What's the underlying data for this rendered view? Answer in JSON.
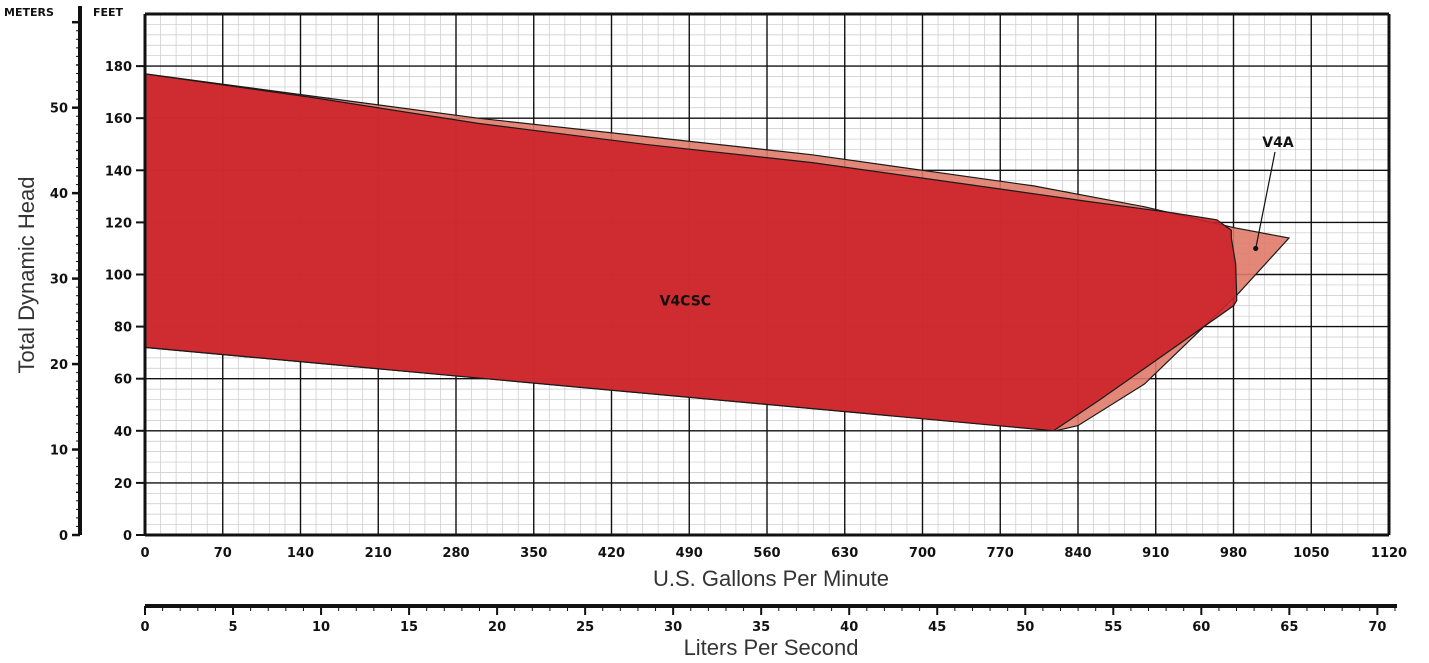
{
  "chart_data": {
    "type": "area",
    "units_header": {
      "meters": "METERS",
      "feet": "FEET"
    },
    "xlabel": "U.S. Gallons Per Minute",
    "ylabel": "Total Dynamic Head",
    "secondary_xlabel": "Liters Per Second",
    "xlim": [
      0,
      1120
    ],
    "ylim_feet": [
      0,
      200
    ],
    "x_ticks": [
      "0",
      "70",
      "140",
      "210",
      "280",
      "350",
      "420",
      "490",
      "560",
      "630",
      "700",
      "770",
      "840",
      "910",
      "980",
      "1050",
      "1120"
    ],
    "y_ticks_feet": [
      "0",
      "20",
      "40",
      "60",
      "80",
      "100",
      "120",
      "140",
      "160",
      "180"
    ],
    "y_ticks_meters": [
      "0",
      "10",
      "20",
      "30",
      "40",
      "50"
    ],
    "x2_ticks_lps": [
      "0",
      "5",
      "10",
      "15",
      "20",
      "25",
      "30",
      "35",
      "40",
      "45",
      "50",
      "55",
      "60",
      "65",
      "70"
    ],
    "grid": true,
    "series": [
      {
        "name": "V4A",
        "color": "#e07b6a",
        "points": [
          [
            0,
            177
          ],
          [
            300,
            160
          ],
          [
            600,
            146
          ],
          [
            800,
            134
          ],
          [
            900,
            126
          ],
          [
            980,
            118
          ],
          [
            1030,
            114
          ],
          [
            985,
            93
          ],
          [
            900,
            58
          ],
          [
            840,
            42
          ],
          [
            820,
            40
          ],
          [
            0,
            72
          ]
        ]
      },
      {
        "name": "V4CSC",
        "color": "#cc2229",
        "points": [
          [
            0,
            177
          ],
          [
            150,
            168
          ],
          [
            300,
            158
          ],
          [
            450,
            150
          ],
          [
            600,
            143
          ],
          [
            750,
            134
          ],
          [
            850,
            128
          ],
          [
            920,
            124
          ],
          [
            965,
            121
          ],
          [
            978,
            117
          ],
          [
            978,
            114
          ],
          [
            982,
            104
          ],
          [
            983,
            90
          ],
          [
            980,
            88
          ],
          [
            910,
            67
          ],
          [
            860,
            52
          ],
          [
            818,
            40
          ],
          [
            0,
            72
          ]
        ]
      }
    ],
    "annotations": [
      {
        "text": "V4A",
        "x": 1000,
        "y": 110
      },
      {
        "text": "V4CSC",
        "x": 500,
        "y": 90
      }
    ]
  }
}
